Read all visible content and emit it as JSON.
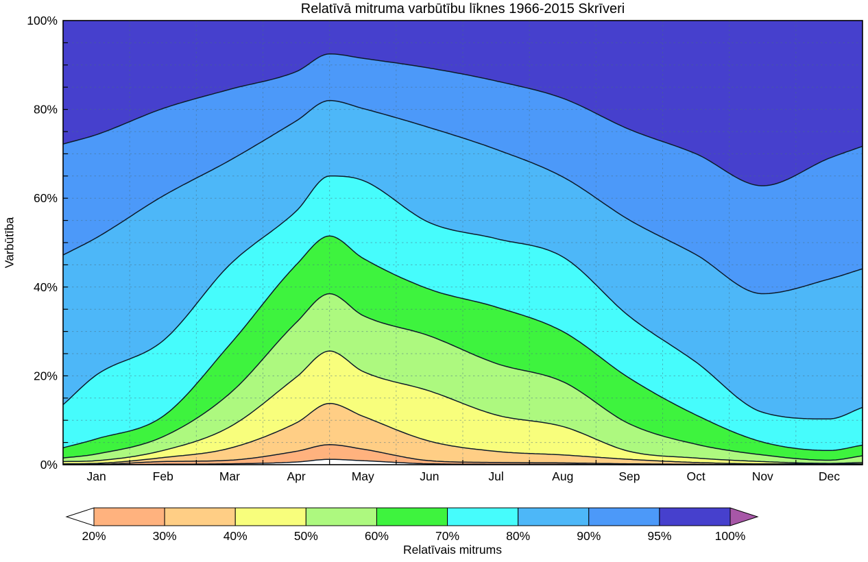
{
  "title": "Relatīvā mitruma varbūtību līknes 1966-2015 Skrīveri",
  "axes": {
    "y_label": "Varbūtība",
    "y_tick_labels": [
      "0%",
      "20%",
      "40%",
      "60%",
      "80%",
      "100%"
    ],
    "y_tick_values": [
      0,
      20,
      40,
      60,
      80,
      100
    ],
    "y_minor_step": 5,
    "x_month_labels": [
      "Jan",
      "Feb",
      "Mar",
      "Apr",
      "May",
      "Jun",
      "Jul",
      "Aug",
      "Sep",
      "Oct",
      "Nov",
      "Dec"
    ]
  },
  "colorbar": {
    "label": "Relatīvais mitrums",
    "tick_labels": [
      "20%",
      "30%",
      "40%",
      "50%",
      "60%",
      "70%",
      "80%",
      "90%",
      "95%",
      "100%"
    ],
    "band_colors": [
      "#ffb27e",
      "#ffce85",
      "#f8fe7c",
      "#adf97f",
      "#3ef33e",
      "#46fcfc",
      "#4db7f8",
      "#4c99f9",
      "#4640cd"
    ],
    "underflow_color": "#ffffff",
    "overflow_color": "#a757a7"
  },
  "style": {
    "curve_color": "#0d1b2a",
    "grid_color": "rgba(70,110,130,0.5)",
    "axis_color": "#000000",
    "background": "#ffffff"
  },
  "chart_data": {
    "type": "area",
    "title": "Relatīvā mitruma varbūtību līknes 1966-2015 Skrīveri",
    "xlabel": "Relatīvais mitrums",
    "ylabel": "Varbūtība",
    "ylim": [
      0,
      100
    ],
    "grid": "dashed horizontal every 5%, dashed vertical at month boundaries",
    "legend_position": "horizontal colorbar below plot",
    "x_unit": "months, 0 = 1 Jan .. 12 = 31 Dec; 0.5..11.5 are month centers, 4.0 is the Apr/May peak",
    "x": [
      0,
      0.5,
      1.5,
      2.5,
      3.5,
      4.0,
      4.5,
      5.5,
      6.5,
      7.5,
      8.5,
      9.5,
      10.5,
      11.5,
      12
    ],
    "series_note": "cumulative probability (%) that relative humidity <= threshold; band between curves is filled with colour of the lower range",
    "top_band_color": "#4640cd",
    "series": [
      {
        "name": "P(RH <= 95%)",
        "threshold": 95,
        "color_below": "#4c99f9",
        "values": [
          72.2,
          74.3,
          80.2,
          84.5,
          88.5,
          92.5,
          91.5,
          89.3,
          86.4,
          82.5,
          75.5,
          70.0,
          62.8,
          69.0,
          71.7
        ]
      },
      {
        "name": "P(RH <= 90%)",
        "threshold": 90,
        "color_below": "#4db7f8",
        "values": [
          47.2,
          51.1,
          60.5,
          68.5,
          77.4,
          82.0,
          80.2,
          75.9,
          71.0,
          64.8,
          55.1,
          47.3,
          38.5,
          41.8,
          44.1
        ]
      },
      {
        "name": "P(RH <= 80%)",
        "threshold": 80,
        "color_below": "#46fcfc",
        "values": [
          13.5,
          20.2,
          27.9,
          45.0,
          57.1,
          65.0,
          64.0,
          54.5,
          50.9,
          46.8,
          33.4,
          23.1,
          11.8,
          10.3,
          12.9
        ]
      },
      {
        "name": "P(RH <= 70%)",
        "threshold": 70,
        "color_below": "#3ef33e",
        "values": [
          3.8,
          5.8,
          10.9,
          27.0,
          45.0,
          51.5,
          46.5,
          39.5,
          35.5,
          30.0,
          19.5,
          11.2,
          5.1,
          3.2,
          4.4
        ]
      },
      {
        "name": "P(RH <= 60%)",
        "threshold": 60,
        "color_below": "#adf97f",
        "values": [
          1.5,
          2.4,
          6.3,
          16.0,
          32.0,
          38.5,
          33.6,
          29.0,
          22.8,
          18.7,
          9.2,
          4.6,
          2.2,
          1.0,
          2.0
        ]
      },
      {
        "name": "P(RH <= 50%)",
        "threshold": 50,
        "color_below": "#f8fe7c",
        "values": [
          0.7,
          0.9,
          3.2,
          8.5,
          19.7,
          25.6,
          21.0,
          16.6,
          11.2,
          8.6,
          3.0,
          1.5,
          0.7,
          0.3,
          0.5
        ]
      },
      {
        "name": "P(RH <= 40%)",
        "threshold": 40,
        "color_below": "#ffce85",
        "values": [
          0.2,
          0.3,
          1.6,
          3.7,
          9.4,
          13.8,
          10.9,
          5.3,
          3.0,
          2.2,
          1.2,
          0.5,
          0.2,
          0.2,
          0.2
        ]
      },
      {
        "name": "P(RH <= 30%)",
        "threshold": 30,
        "color_below": "#ffb27e",
        "values": [
          0.1,
          0.1,
          0.7,
          1.0,
          3.0,
          4.5,
          3.5,
          0.9,
          0.5,
          0.4,
          0.2,
          0.1,
          0.0,
          0.1,
          0.1
        ]
      },
      {
        "name": "P(RH <= 20%)",
        "threshold": 20,
        "color_below": "#ffffff",
        "values": [
          0.0,
          0.0,
          0.1,
          0.2,
          0.6,
          1.2,
          0.9,
          0.2,
          0.1,
          0.1,
          0.0,
          0.0,
          0.0,
          0.0,
          0.0
        ]
      }
    ]
  }
}
